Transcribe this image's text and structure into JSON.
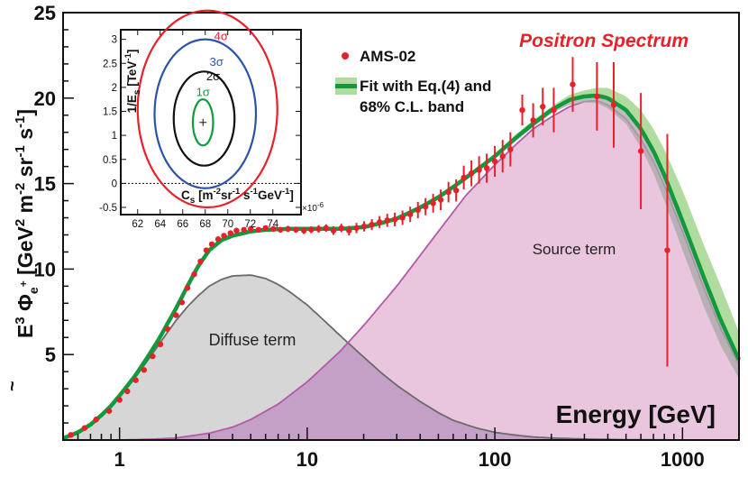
{
  "chart_data": {
    "type": "line",
    "title": "Positron Spectrum",
    "title_color": "#e8202a",
    "xlabel": "Energy [GeV]",
    "ylabel_parts": {
      "e": "E",
      "e_tilde": "~",
      "e_exp": "3",
      "phi": "Φ",
      "phi_sub": "e",
      "phi_sup": "+",
      "units": " [GeV",
      "u1": "2",
      "m": " m",
      "u2": "-2",
      "sr": " sr",
      "u3": "-1",
      "s": " s",
      "u4": "-1",
      "close": "]"
    },
    "x_scale": "log",
    "xlim": [
      0.5,
      2000
    ],
    "ylim": [
      0,
      25
    ],
    "x_ticks": [
      1,
      10,
      100,
      1000
    ],
    "x_tick_labels": [
      "1",
      "10",
      "100",
      "1000"
    ],
    "y_ticks": [
      5,
      10,
      15,
      20,
      25
    ],
    "y_tick_labels": [
      "5",
      "10",
      "15",
      "20",
      "25"
    ],
    "legend": {
      "position": "top-center",
      "entries": [
        {
          "label": "AMS-02",
          "kind": "marker",
          "color": "#e8202a"
        },
        {
          "label_line1": "Fit with Eq.(4) and",
          "label_line2": "68% C.L. band",
          "kind": "line-band",
          "color": "#119a3b",
          "band_color": "#b0dca0"
        }
      ]
    },
    "annotations": [
      {
        "text": "Source term",
        "x": 250,
        "y": 11.1
      },
      {
        "text": "Diffuse term",
        "x": 6.3,
        "y": 5.8
      }
    ],
    "colors": {
      "fit": "#119a3b",
      "band": "#b0dca0",
      "data": "#e8202a",
      "diffuse_fill": "#d6d6d6",
      "diffuse_line": "#6a6a6a",
      "source_fill": "#e6bcd8",
      "source_line": "#b05aa8",
      "overlap_fill": "#c09cc4"
    },
    "series": [
      {
        "name": "AMS-02",
        "kind": "scatter",
        "x": [
          0.55,
          0.65,
          0.75,
          0.88,
          1.0,
          1.1,
          1.22,
          1.35,
          1.5,
          1.65,
          1.8,
          2.0,
          2.15,
          2.3,
          2.5,
          2.7,
          2.9,
          3.1,
          3.35,
          3.6,
          3.9,
          4.2,
          4.6,
          5.0,
          5.5,
          6.0,
          6.6,
          7.2,
          7.9,
          8.7,
          9.6,
          10.5,
          11.5,
          12.6,
          13.8,
          15.2,
          16.7,
          18.3,
          20.1,
          22.1,
          24.3,
          26.7,
          29.3,
          32.2,
          35.4,
          38.9,
          42.7,
          46.9,
          51.5,
          56.6,
          62.2,
          68.3,
          75.0,
          82.4,
          90.5,
          100,
          110,
          121,
          140,
          160,
          180,
          206,
          260,
          350,
          430,
          600,
          830
        ],
        "y": [
          0.3,
          0.7,
          1.2,
          1.7,
          2.35,
          2.85,
          3.5,
          4.1,
          4.9,
          5.6,
          6.5,
          7.3,
          8.05,
          8.9,
          9.7,
          10.45,
          11.1,
          11.45,
          11.75,
          11.95,
          12.1,
          12.25,
          12.3,
          12.35,
          12.3,
          12.4,
          12.35,
          12.3,
          12.35,
          12.3,
          12.25,
          12.3,
          12.35,
          12.4,
          12.25,
          12.4,
          12.25,
          12.4,
          12.5,
          12.6,
          12.75,
          12.85,
          12.9,
          13.0,
          13.2,
          13.45,
          13.65,
          13.85,
          14.05,
          14.5,
          14.6,
          15.35,
          15.6,
          15.8,
          15.9,
          16.3,
          16.6,
          17.0,
          19.3,
          18.7,
          19.5,
          19.3,
          20.8,
          20.1,
          19.6,
          16.9,
          11.1
        ],
        "err": [
          0.05,
          0.05,
          0.05,
          0.06,
          0.07,
          0.07,
          0.07,
          0.08,
          0.08,
          0.08,
          0.1,
          0.1,
          0.1,
          0.1,
          0.1,
          0.12,
          0.12,
          0.12,
          0.12,
          0.12,
          0.13,
          0.13,
          0.13,
          0.15,
          0.15,
          0.15,
          0.16,
          0.17,
          0.18,
          0.18,
          0.2,
          0.2,
          0.22,
          0.22,
          0.25,
          0.25,
          0.28,
          0.3,
          0.3,
          0.32,
          0.35,
          0.38,
          0.4,
          0.42,
          0.45,
          0.48,
          0.5,
          0.55,
          0.6,
          0.6,
          0.65,
          0.7,
          0.75,
          0.8,
          0.85,
          0.9,
          0.95,
          1.0,
          0.9,
          1.0,
          1.1,
          1.3,
          1.6,
          2.0,
          2.5,
          3.4,
          6.8
        ]
      },
      {
        "name": "Fit",
        "kind": "line",
        "x": [
          0.5,
          0.6,
          0.7,
          0.8,
          0.9,
          1.0,
          1.2,
          1.4,
          1.6,
          1.8,
          2.0,
          2.3,
          2.6,
          3.0,
          3.5,
          4.0,
          5.0,
          6.0,
          8.0,
          10,
          12,
          15,
          20,
          25,
          30,
          40,
          50,
          60,
          80,
          100,
          130,
          160,
          200,
          250,
          300,
          350,
          400,
          500,
          600,
          700,
          800,
          1000,
          1300,
          1600,
          2000
        ],
        "y": [
          0.1,
          0.45,
          0.9,
          1.45,
          2.0,
          2.6,
          3.7,
          4.8,
          5.8,
          6.8,
          7.7,
          9.0,
          10.1,
          11.1,
          11.7,
          11.95,
          12.2,
          12.3,
          12.35,
          12.35,
          12.35,
          12.35,
          12.45,
          12.7,
          12.95,
          13.6,
          14.2,
          14.8,
          15.8,
          16.6,
          17.7,
          18.5,
          19.3,
          19.9,
          20.1,
          20.15,
          20.0,
          19.3,
          18.2,
          16.9,
          15.5,
          12.8,
          9.5,
          7.0,
          4.7
        ],
        "band_hi": [
          0.1,
          0.45,
          0.9,
          1.45,
          2.0,
          2.6,
          3.7,
          4.8,
          5.8,
          6.8,
          7.7,
          9.0,
          10.1,
          11.1,
          11.7,
          11.95,
          12.2,
          12.3,
          12.35,
          12.35,
          12.35,
          12.35,
          12.5,
          12.75,
          13.0,
          13.65,
          14.25,
          14.9,
          15.9,
          16.7,
          17.9,
          18.7,
          19.5,
          20.2,
          20.45,
          20.6,
          20.6,
          20.1,
          19.3,
          18.2,
          17.0,
          14.6,
          11.4,
          9.0,
          6.3
        ],
        "band_lo": [
          0.1,
          0.45,
          0.9,
          1.45,
          2.0,
          2.6,
          3.7,
          4.8,
          5.8,
          6.8,
          7.7,
          9.0,
          10.1,
          11.1,
          11.7,
          11.95,
          12.2,
          12.3,
          12.35,
          12.35,
          12.35,
          12.35,
          12.4,
          12.65,
          12.9,
          13.55,
          14.15,
          14.7,
          15.7,
          16.5,
          17.5,
          18.3,
          19.1,
          19.6,
          19.75,
          19.7,
          19.4,
          18.5,
          17.1,
          15.6,
          14.0,
          11.1,
          7.8,
          5.5,
          3.6
        ]
      },
      {
        "name": "Diffuse term",
        "kind": "area",
        "x": [
          0.5,
          0.6,
          0.7,
          0.8,
          0.9,
          1.0,
          1.2,
          1.4,
          1.6,
          1.8,
          2.0,
          2.3,
          2.6,
          3.0,
          3.5,
          4.0,
          5.0,
          6.0,
          7.0,
          8.0,
          10,
          12,
          15,
          20,
          25,
          30,
          40,
          50,
          60,
          80,
          100,
          130,
          160,
          200,
          300,
          500,
          800,
          1200,
          2000
        ],
        "y": [
          0.1,
          0.45,
          0.9,
          1.45,
          2.0,
          2.55,
          3.6,
          4.6,
          5.5,
          6.3,
          7.0,
          7.8,
          8.4,
          9.0,
          9.4,
          9.6,
          9.65,
          9.45,
          9.1,
          8.7,
          7.9,
          7.1,
          6.1,
          4.85,
          3.9,
          3.2,
          2.25,
          1.6,
          1.15,
          0.7,
          0.45,
          0.28,
          0.18,
          0.12,
          0.06,
          0.02,
          0.01,
          0.0,
          0.0
        ]
      },
      {
        "name": "Source term",
        "kind": "area",
        "x": [
          1.0,
          1.5,
          2.0,
          3.0,
          4.0,
          5.0,
          7.0,
          10,
          15,
          20,
          30,
          40,
          50,
          70,
          100,
          130,
          160,
          200,
          250,
          300,
          350,
          400,
          500,
          600,
          700,
          800,
          1000,
          1300,
          1600,
          2000
        ],
        "y": [
          0.0,
          0.05,
          0.12,
          0.4,
          0.75,
          1.2,
          2.1,
          3.4,
          5.2,
          6.7,
          9.0,
          10.8,
          12.2,
          14.3,
          16.1,
          17.3,
          18.2,
          18.9,
          19.5,
          19.8,
          19.85,
          19.6,
          18.8,
          17.6,
          16.3,
          14.9,
          12.2,
          8.9,
          6.5,
          4.4
        ]
      }
    ],
    "inset": {
      "type": "contour",
      "xlabel_parts": {
        "c": "C",
        "sub": "s",
        "rest": " [m",
        "e1": "-2",
        "sr": "sr",
        "e2": "-1",
        "s": " s",
        "e3": "-1",
        "gev": "GeV",
        "e4": "-1",
        "close": "]"
      },
      "ylabel_parts": {
        "one": "1/E",
        "sub": "s",
        "unit": " [TeV",
        "exp": "-1",
        "close": "]"
      },
      "x_multiplier": "×10",
      "x_multiplier_exp": "-6",
      "xlim": [
        60.5,
        76.5
      ],
      "ylim": [
        -0.65,
        3.2
      ],
      "x_ticks": [
        62,
        64,
        66,
        68,
        70,
        72,
        74
      ],
      "x_tick_labels": [
        "62",
        "64",
        "66",
        "68",
        "70",
        "72",
        "74"
      ],
      "y_ticks": [
        -0.5,
        0,
        0.5,
        1,
        1.5,
        2,
        2.5,
        3
      ],
      "y_tick_labels": [
        "-0.5",
        "0",
        "0.5",
        "1",
        "1.5",
        "2",
        "2.5",
        "3"
      ],
      "best_fit": {
        "x": 67.8,
        "y": 1.27
      },
      "contours": [
        {
          "label": "1σ",
          "color": "#119a3b",
          "center": [
            67.8,
            1.27
          ],
          "rx": 0.9,
          "ry": 0.48,
          "label_pos": [
            67.8,
            1.82
          ]
        },
        {
          "label": "2σ",
          "color": "#111111",
          "center": [
            67.9,
            1.35
          ],
          "rx": 2.7,
          "ry": 0.98,
          "label_pos": [
            68.7,
            2.15
          ]
        },
        {
          "label": "3σ",
          "color": "#2b54a8",
          "center": [
            68.0,
            1.45
          ],
          "rx": 4.5,
          "ry": 1.55,
          "label_pos": [
            69.0,
            2.45
          ]
        },
        {
          "label": "4σ",
          "color": "#e8202a",
          "center": [
            68.2,
            1.55
          ],
          "rx": 6.2,
          "ry": 2.05,
          "label_pos": [
            69.4,
            2.98
          ]
        }
      ]
    }
  }
}
